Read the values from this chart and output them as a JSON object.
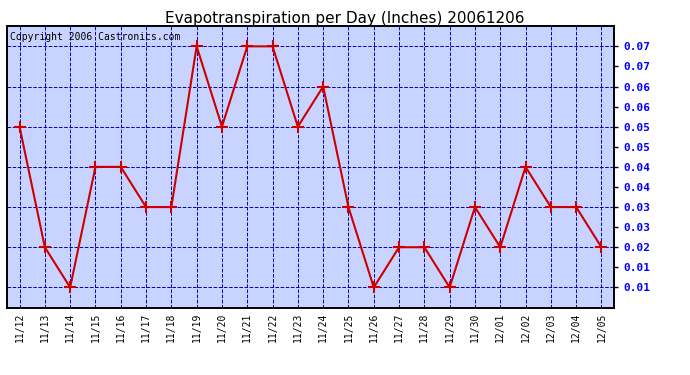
{
  "title": "Evapotranspiration per Day (Inches) 20061206",
  "copyright_text": "Copyright 2006 Castronics.com",
  "x_labels": [
    "11/12",
    "11/13",
    "11/14",
    "11/15",
    "11/16",
    "11/17",
    "11/18",
    "11/19",
    "11/20",
    "11/21",
    "11/22",
    "11/23",
    "11/24",
    "11/25",
    "11/26",
    "11/27",
    "11/28",
    "11/29",
    "11/30",
    "12/01",
    "12/02",
    "12/03",
    "12/04",
    "12/05"
  ],
  "y_values": [
    0.05,
    0.02,
    0.01,
    0.04,
    0.04,
    0.03,
    0.03,
    0.07,
    0.05,
    0.07,
    0.07,
    0.05,
    0.06,
    0.03,
    0.01,
    0.02,
    0.02,
    0.01,
    0.03,
    0.02,
    0.04,
    0.03,
    0.03,
    0.02
  ],
  "line_color": "#cc0000",
  "marker": "+",
  "marker_color": "#cc0000",
  "bg_color": "#ffffff",
  "plot_bg_color": "#c8d4ff",
  "grid_color": "#0000bb",
  "title_fontsize": 11,
  "copyright_fontsize": 7,
  "tick_label_fontsize": 7,
  "y_tick_label_fontsize": 8,
  "ylim_min": 0.005,
  "ylim_max": 0.075,
  "ytick_values": [
    0.01,
    0.02,
    0.03,
    0.04,
    0.05,
    0.06,
    0.07
  ],
  "ytick_labels_right": [
    "0.07",
    "0.07",
    "0.06",
    "0.06",
    "0.05",
    "0.05",
    "0.04",
    "0.04",
    "0.03",
    "0.03",
    "0.02",
    "0.01",
    "0.01"
  ],
  "border_color": "#000000"
}
